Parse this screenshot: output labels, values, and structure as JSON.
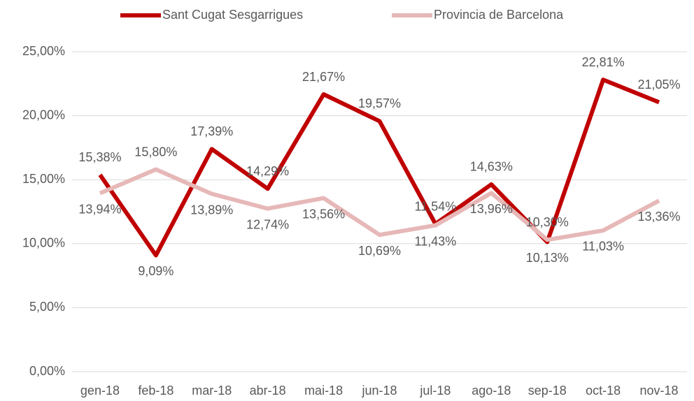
{
  "chart_data": {
    "type": "line",
    "categories": [
      "gen-18",
      "feb-18",
      "mar-18",
      "abr-18",
      "mai-18",
      "jun-18",
      "jul-18",
      "ago-18",
      "sep-18",
      "oct-18",
      "nov-18"
    ],
    "series": [
      {
        "name": "Sant Cugat Sesgarrigues",
        "color": "#c00000",
        "values": [
          15.38,
          9.09,
          17.39,
          14.29,
          21.67,
          19.57,
          11.54,
          14.63,
          10.13,
          22.81,
          21.05
        ],
        "value_labels": [
          "15,38%",
          "9,09%",
          "17,39%",
          "14,29%",
          "21,67%",
          "19,57%",
          "11,54%",
          "14,63%",
          "10,13%",
          "22,81%",
          "21,05%"
        ]
      },
      {
        "name": "Provincia de Barcelona",
        "color": "#e6b8b7",
        "values": [
          13.94,
          15.8,
          13.89,
          12.74,
          13.56,
          10.69,
          11.43,
          13.96,
          10.3,
          11.03,
          13.36
        ],
        "value_labels": [
          "13,94%",
          "15,80%",
          "13,89%",
          "12,74%",
          "13,56%",
          "10,69%",
          "11,43%",
          "13,96%",
          "10,30%",
          "11,03%",
          "13,36%"
        ]
      }
    ],
    "ylim": [
      0,
      25
    ],
    "yticks": [
      {
        "value": 0,
        "label": "0,00%"
      },
      {
        "value": 5,
        "label": "5,00%"
      },
      {
        "value": 10,
        "label": "10,00%"
      },
      {
        "value": 15,
        "label": "15,00%"
      },
      {
        "value": 20,
        "label": "20,00%"
      },
      {
        "value": 25,
        "label": "25,00%"
      }
    ],
    "grid": true,
    "legend": "top"
  }
}
